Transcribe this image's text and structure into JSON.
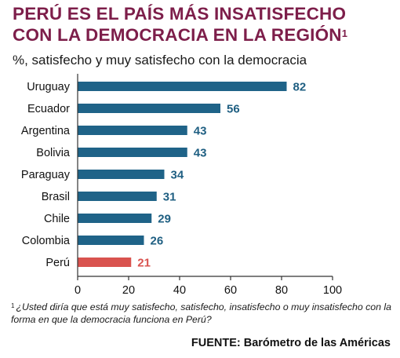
{
  "header": {
    "title_line1": "PERÚ ES EL PAÍS MÁS INSATISFECHO",
    "title_line2": "CON LA DEMOCRACIA EN LA REGIÓN",
    "title_sup": "1",
    "subtitle": "%, satisfecho y muy satisfecho con la democracia"
  },
  "footer": {
    "footnote_marker": "1",
    "footnote": "¿Usted diría que está muy satisfecho, satisfecho, insatisfecho o muy insatisfecho con la forma en que la democracia funciona en Perú?",
    "source": "FUENTE: Barómetro de las Américas"
  },
  "chart_data": {
    "type": "bar",
    "orientation": "horizontal",
    "categories": [
      "Uruguay",
      "Ecuador",
      "Argentina",
      "Bolivia",
      "Paraguay",
      "Brasil",
      "Chile",
      "Colombia",
      "Perú"
    ],
    "values": [
      82,
      56,
      43,
      43,
      34,
      31,
      29,
      26,
      21
    ],
    "xlim": [
      0,
      100
    ],
    "xticks": [
      0,
      20,
      40,
      60,
      80,
      100
    ],
    "grid": false,
    "colors": {
      "default": "#1f6388",
      "highlight": "#d9534f",
      "default_label": "#1f5f82",
      "highlight_label": "#d9534f"
    },
    "highlight_category": "Perú"
  }
}
